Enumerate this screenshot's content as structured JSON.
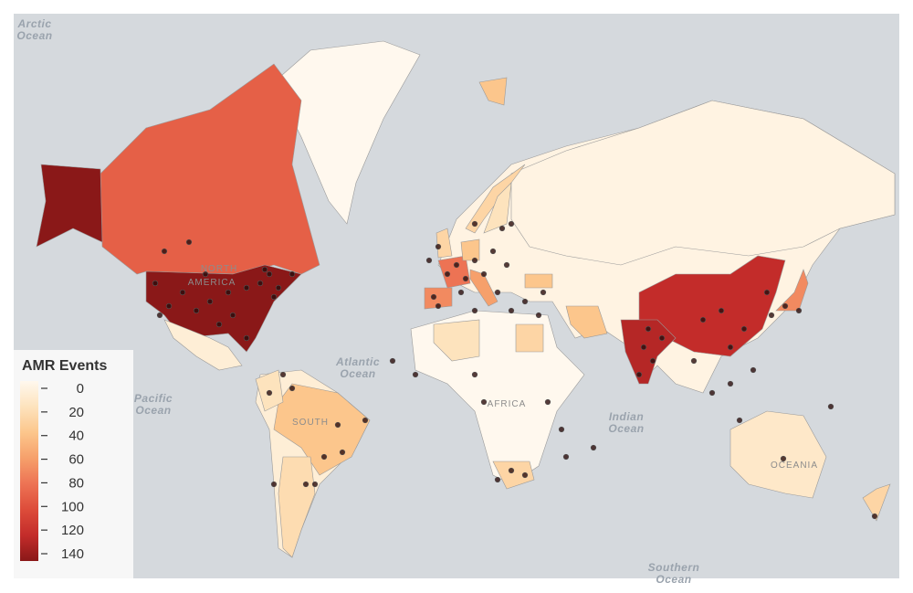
{
  "map": {
    "legend": {
      "title": "AMR Events",
      "ticks": [
        0,
        20,
        40,
        60,
        80,
        100,
        120,
        140
      ],
      "range": [
        0,
        140
      ],
      "colors": [
        "#fff8ee",
        "#fde3bd",
        "#fcc68c",
        "#f6a06b",
        "#ed7354",
        "#dd4c3a",
        "#c32c2a",
        "#8a1818"
      ]
    },
    "ocean_labels": [
      [
        "Arctic",
        "Ocean"
      ],
      [
        "Atlantic",
        "Ocean"
      ],
      [
        "Pacific",
        "Ocean"
      ],
      [
        "Indian",
        "Ocean"
      ],
      [
        "Southern",
        "Ocean"
      ]
    ],
    "continent_labels": [
      "NORTH",
      "AMERICA",
      "SOUTH",
      "AFRICA",
      "OCEANIA"
    ],
    "region_values": [
      5,
      0,
      10,
      5,
      0,
      90,
      140,
      140,
      10,
      40,
      25,
      20,
      30,
      20,
      30,
      30,
      40,
      80,
      70,
      60,
      40,
      30,
      20,
      15,
      40,
      120,
      125,
      70,
      30,
      40
    ]
  }
}
